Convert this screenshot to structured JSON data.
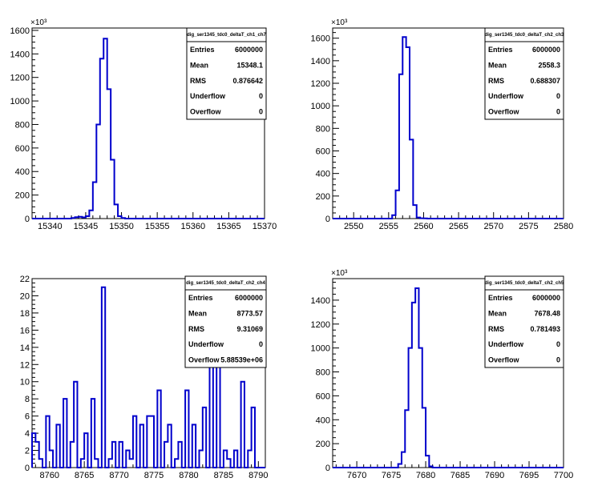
{
  "chart_data": [
    {
      "type": "histogram",
      "stats": {
        "title": "dig_ser1345_tdc0_deltaT_ch1_ch7",
        "rows": [
          {
            "label": "Entries",
            "value": "6000000"
          },
          {
            "label": "Mean",
            "value": "15348.1"
          },
          {
            "label": "RMS",
            "value": "0.876642"
          },
          {
            "label": "Underflow",
            "value": "0"
          },
          {
            "label": "Overflow",
            "value": "0"
          }
        ]
      },
      "y_multiplier": "×10³",
      "xlim": [
        15337.5,
        15370
      ],
      "ylim": [
        0,
        1620
      ],
      "xticks": [
        15340,
        15345,
        15350,
        15355,
        15360,
        15365,
        15370
      ],
      "yticks": [
        0,
        200,
        400,
        600,
        800,
        1000,
        1200,
        1400,
        1600
      ],
      "bin_edges": [
        15343,
        15343.5,
        15344,
        15344.5,
        15345,
        15345.5,
        15346,
        15346.5,
        15347,
        15347.5,
        15348,
        15348.5,
        15349,
        15349.5,
        15350,
        15350.5
      ],
      "values": [
        5,
        12,
        15,
        10,
        20,
        70,
        310,
        800,
        1360,
        1530,
        1100,
        500,
        120,
        20,
        5
      ]
    },
    {
      "type": "histogram",
      "stats": {
        "title": "dig_ser1345_tdc0_deltaT_ch2_ch3",
        "rows": [
          {
            "label": "Entries",
            "value": "6000000"
          },
          {
            "label": "Mean",
            "value": "2558.3"
          },
          {
            "label": "RMS",
            "value": "0.688307"
          },
          {
            "label": "Underflow",
            "value": "0"
          },
          {
            "label": "Overflow",
            "value": "0"
          }
        ]
      },
      "y_multiplier": "×10³",
      "xlim": [
        2547,
        2580
      ],
      "ylim": [
        0,
        1690
      ],
      "xticks": [
        2550,
        2555,
        2560,
        2565,
        2570,
        2575,
        2580
      ],
      "yticks": [
        0,
        200,
        400,
        600,
        800,
        1000,
        1200,
        1400,
        1600
      ],
      "bin_edges": [
        2555.5,
        2556,
        2556.5,
        2557,
        2557.5,
        2558,
        2558.5,
        2559,
        2559.5,
        2560,
        2560.5
      ],
      "values": [
        30,
        250,
        1280,
        1610,
        1520,
        700,
        120,
        10,
        3,
        2
      ]
    },
    {
      "type": "histogram",
      "stats": {
        "title": "dig_ser1345_tdc0_deltaT_ch2_ch4",
        "rows": [
          {
            "label": "Entries",
            "value": "6000000"
          },
          {
            "label": "Mean",
            "value": "8773.57"
          },
          {
            "label": "RMS",
            "value": "9.31069"
          },
          {
            "label": "Underflow",
            "value": "0"
          },
          {
            "label": "Overflow",
            "value": "5.88539e+06"
          }
        ]
      },
      "y_multiplier": "",
      "xlim": [
        8757.5,
        8791
      ],
      "ylim": [
        0,
        22
      ],
      "xticks": [
        8760,
        8765,
        8770,
        8775,
        8780,
        8785,
        8790
      ],
      "yticks": [
        0,
        2,
        4,
        6,
        8,
        10,
        12,
        14,
        16,
        18,
        20,
        22
      ],
      "bin_edges": [
        8757.5,
        8758,
        8758.5,
        8759,
        8759.5,
        8760,
        8760.5,
        8761,
        8761.5,
        8762,
        8762.5,
        8763,
        8763.5,
        8764,
        8764.5,
        8765,
        8765.5,
        8766,
        8766.5,
        8767,
        8767.5,
        8768,
        8768.5,
        8769,
        8769.5,
        8770,
        8770.5,
        8771,
        8771.5,
        8772,
        8772.5,
        8773,
        8773.5,
        8774,
        8774.5,
        8775,
        8775.5,
        8776,
        8776.5,
        8777,
        8777.5,
        8778,
        8778.5,
        8779,
        8779.5,
        8780,
        8780.5,
        8781,
        8781.5,
        8782,
        8782.5,
        8783,
        8783.5,
        8784,
        8784.5,
        8785,
        8785.5,
        8786,
        8786.5,
        8787,
        8787.5,
        8788,
        8788.5,
        8789,
        8789.5,
        8790,
        8790.5,
        8791
      ],
      "values": [
        4,
        3,
        1,
        0,
        6,
        2,
        0,
        5,
        0,
        8,
        0,
        3,
        10,
        0,
        1,
        4,
        0,
        8,
        1,
        0,
        21,
        0,
        1,
        3,
        0,
        3,
        0,
        2,
        1,
        6,
        0,
        5,
        0,
        6,
        6,
        0,
        9,
        0,
        3,
        5,
        0,
        1,
        3,
        0,
        9,
        0,
        5,
        0,
        2,
        7,
        0,
        12,
        0,
        21,
        0,
        2,
        1,
        0,
        2,
        0,
        10,
        0,
        2,
        7,
        0,
        0,
        0
      ]
    },
    {
      "type": "histogram",
      "stats": {
        "title": "dig_ser1345_tdc0_deltaT_ch2_ch5",
        "rows": [
          {
            "label": "Entries",
            "value": "6000000"
          },
          {
            "label": "Mean",
            "value": "7678.48"
          },
          {
            "label": "RMS",
            "value": "0.781493"
          },
          {
            "label": "Underflow",
            "value": "0"
          },
          {
            "label": "Overflow",
            "value": "0"
          }
        ]
      },
      "y_multiplier": "×10³",
      "xlim": [
        7666.5,
        7700
      ],
      "ylim": [
        0,
        1580
      ],
      "xticks": [
        7670,
        7675,
        7680,
        7685,
        7690,
        7695,
        7700
      ],
      "yticks": [
        0,
        200,
        400,
        600,
        800,
        1000,
        1200,
        1400
      ],
      "bin_edges": [
        7676,
        7676.5,
        7677,
        7677.5,
        7678,
        7678.5,
        7679,
        7679.5,
        7680,
        7680.5,
        7681
      ],
      "values": [
        30,
        130,
        480,
        1000,
        1380,
        1500,
        1000,
        500,
        100,
        10
      ]
    }
  ],
  "colors": {
    "histogram_line": "#0000cc",
    "axis": "#000000",
    "stats_border": "#000000",
    "background": "#ffffff"
  }
}
